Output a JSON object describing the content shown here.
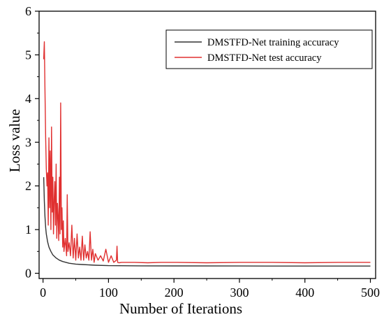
{
  "chart_data": {
    "type": "line",
    "title": "",
    "xlabel": "Number of Iterations",
    "ylabel": "Loss value",
    "xlim": [
      -6,
      508
    ],
    "ylim": [
      -0.12,
      6
    ],
    "xticks": [
      "0",
      "100",
      "200",
      "300",
      "400",
      "500"
    ],
    "yticks": [
      "0",
      "1",
      "2",
      "3",
      "4",
      "5",
      "6"
    ],
    "grid": false,
    "legend_position": "top-right",
    "series": [
      {
        "name": "DMSTFD-Net training accuracy",
        "color": "#333333",
        "x": [
          1,
          2,
          3,
          4,
          5,
          7,
          9,
          12,
          15,
          20,
          25,
          30,
          40,
          50,
          60,
          80,
          100,
          150,
          200,
          300,
          400,
          500
        ],
        "y": [
          2.2,
          1.65,
          1.3,
          1.05,
          0.9,
          0.72,
          0.6,
          0.5,
          0.42,
          0.35,
          0.3,
          0.27,
          0.23,
          0.21,
          0.2,
          0.185,
          0.175,
          0.17,
          0.168,
          0.166,
          0.165,
          0.165
        ]
      },
      {
        "name": "DMSTFD-Net test accuracy",
        "color": "#e03030",
        "x": [
          1,
          2,
          3,
          4,
          5,
          6,
          7,
          8,
          9,
          10,
          11,
          12,
          13,
          14,
          15,
          16,
          17,
          18,
          19,
          20,
          21,
          22,
          23,
          24,
          25,
          26,
          27,
          28,
          29,
          30,
          31,
          32,
          34,
          36,
          37,
          38,
          40,
          42,
          44,
          46,
          48,
          50,
          52,
          54,
          56,
          58,
          60,
          62,
          64,
          66,
          68,
          70,
          72,
          74,
          76,
          78,
          80,
          84,
          88,
          92,
          96,
          100,
          104,
          108,
          112,
          113,
          114,
          116,
          120,
          140,
          160,
          180,
          200,
          250,
          300,
          350,
          400,
          450,
          500
        ],
        "y": [
          4.9,
          5.3,
          4.2,
          3.1,
          2.4,
          2.0,
          2.3,
          1.1,
          3.1,
          1.5,
          2.8,
          1.0,
          3.35,
          1.4,
          2.2,
          0.9,
          1.7,
          2.1,
          1.1,
          2.5,
          0.8,
          1.6,
          1.3,
          0.75,
          2.2,
          0.9,
          3.9,
          1.0,
          1.5,
          0.6,
          1.2,
          0.5,
          0.8,
          0.4,
          1.8,
          0.5,
          0.7,
          0.4,
          1.1,
          0.35,
          0.8,
          0.3,
          0.9,
          0.35,
          0.6,
          0.3,
          0.85,
          0.3,
          0.65,
          0.35,
          0.5,
          0.3,
          0.95,
          0.3,
          0.55,
          0.25,
          0.45,
          0.3,
          0.4,
          0.28,
          0.55,
          0.25,
          0.4,
          0.25,
          0.3,
          0.62,
          0.25,
          0.24,
          0.25,
          0.25,
          0.24,
          0.25,
          0.25,
          0.24,
          0.25,
          0.25,
          0.24,
          0.25,
          0.25
        ]
      }
    ]
  }
}
